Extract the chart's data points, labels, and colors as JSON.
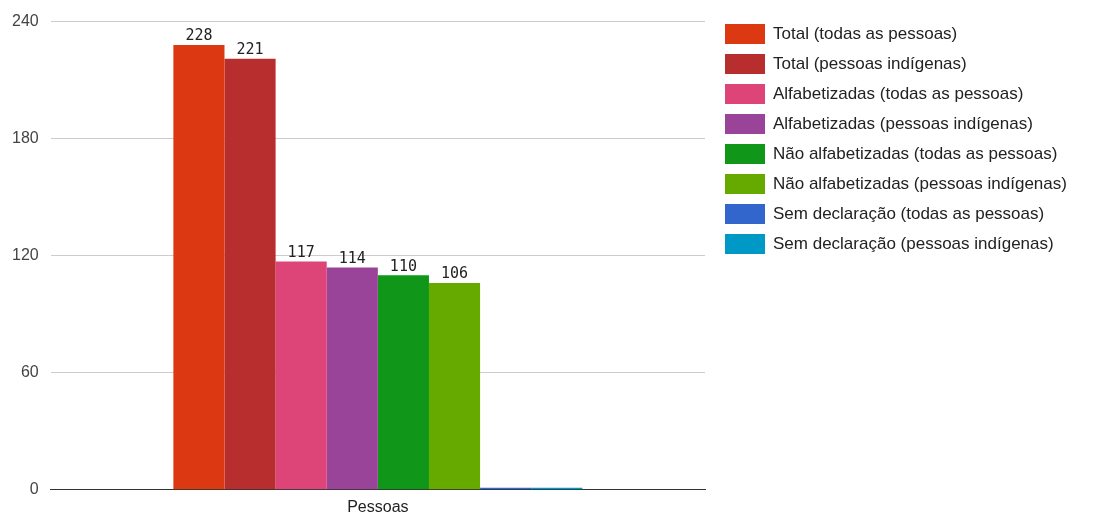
{
  "chart_data": {
    "type": "bar",
    "categories": [
      "Pessoas"
    ],
    "series": [
      {
        "name": "Total (todas as pessoas)",
        "color": "#dc3912",
        "values": [
          228
        ],
        "value_labels": [
          "228"
        ]
      },
      {
        "name": "Total (pessoas indígenas)",
        "color": "#b82e2e",
        "values": [
          221
        ],
        "value_labels": [
          "221"
        ]
      },
      {
        "name": "Alfabetizadas (todas as pessoas)",
        "color": "#dd4477",
        "values": [
          117
        ],
        "value_labels": [
          "117"
        ]
      },
      {
        "name": "Alfabetizadas (pessoas indígenas)",
        "color": "#994499",
        "values": [
          114
        ],
        "value_labels": [
          "114"
        ]
      },
      {
        "name": "Não alfabetizadas (todas as pessoas)",
        "color": "#109618",
        "values": [
          110
        ],
        "value_labels": [
          "110"
        ]
      },
      {
        "name": "Não alfabetizadas (pessoas indígenas)",
        "color": "#66aa00",
        "values": [
          106
        ],
        "value_labels": [
          "106"
        ]
      },
      {
        "name": "Sem declaração (todas as pessoas)",
        "color": "#3366cc",
        "values": [
          1
        ],
        "value_labels": [
          null
        ]
      },
      {
        "name": "Sem declaração (pessoas indígenas)",
        "color": "#0099c6",
        "values": [
          1
        ],
        "value_labels": [
          null
        ]
      }
    ],
    "ylim": [
      0,
      240
    ],
    "yticks": [
      0,
      60,
      120,
      180,
      240
    ],
    "grid": "y",
    "legend": "right"
  }
}
